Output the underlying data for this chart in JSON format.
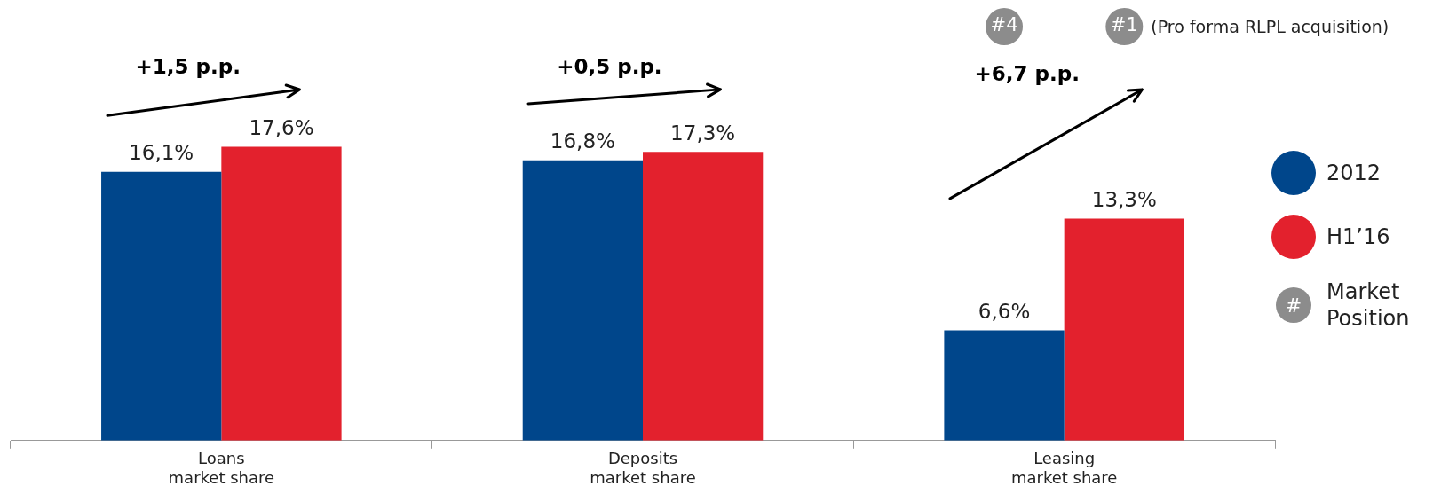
{
  "chart_data": {
    "type": "bar",
    "categories": [
      "Loans\nmarket share",
      "Deposits\nmarket share",
      "Leasing\nmarket share"
    ],
    "series": [
      {
        "name": "2012",
        "color": "#00468b",
        "values": [
          16.1,
          16.8,
          6.6
        ],
        "value_labels": [
          "16,1%",
          "16,8%",
          "6,6%"
        ]
      },
      {
        "name": "H1’16",
        "color": "#e3212d",
        "values": [
          17.6,
          17.3,
          13.3
        ],
        "value_labels": [
          "17,6%",
          "17,3%",
          "13,3%"
        ]
      }
    ],
    "annotations": [
      "+1,5 p.p.",
      "+0,5 p.p.",
      "+6,7 p.p.",
      "#4",
      "#1",
      "(Pro forma RLPL acquisition)",
      "#",
      "Market Position"
    ],
    "legend": "right"
  }
}
